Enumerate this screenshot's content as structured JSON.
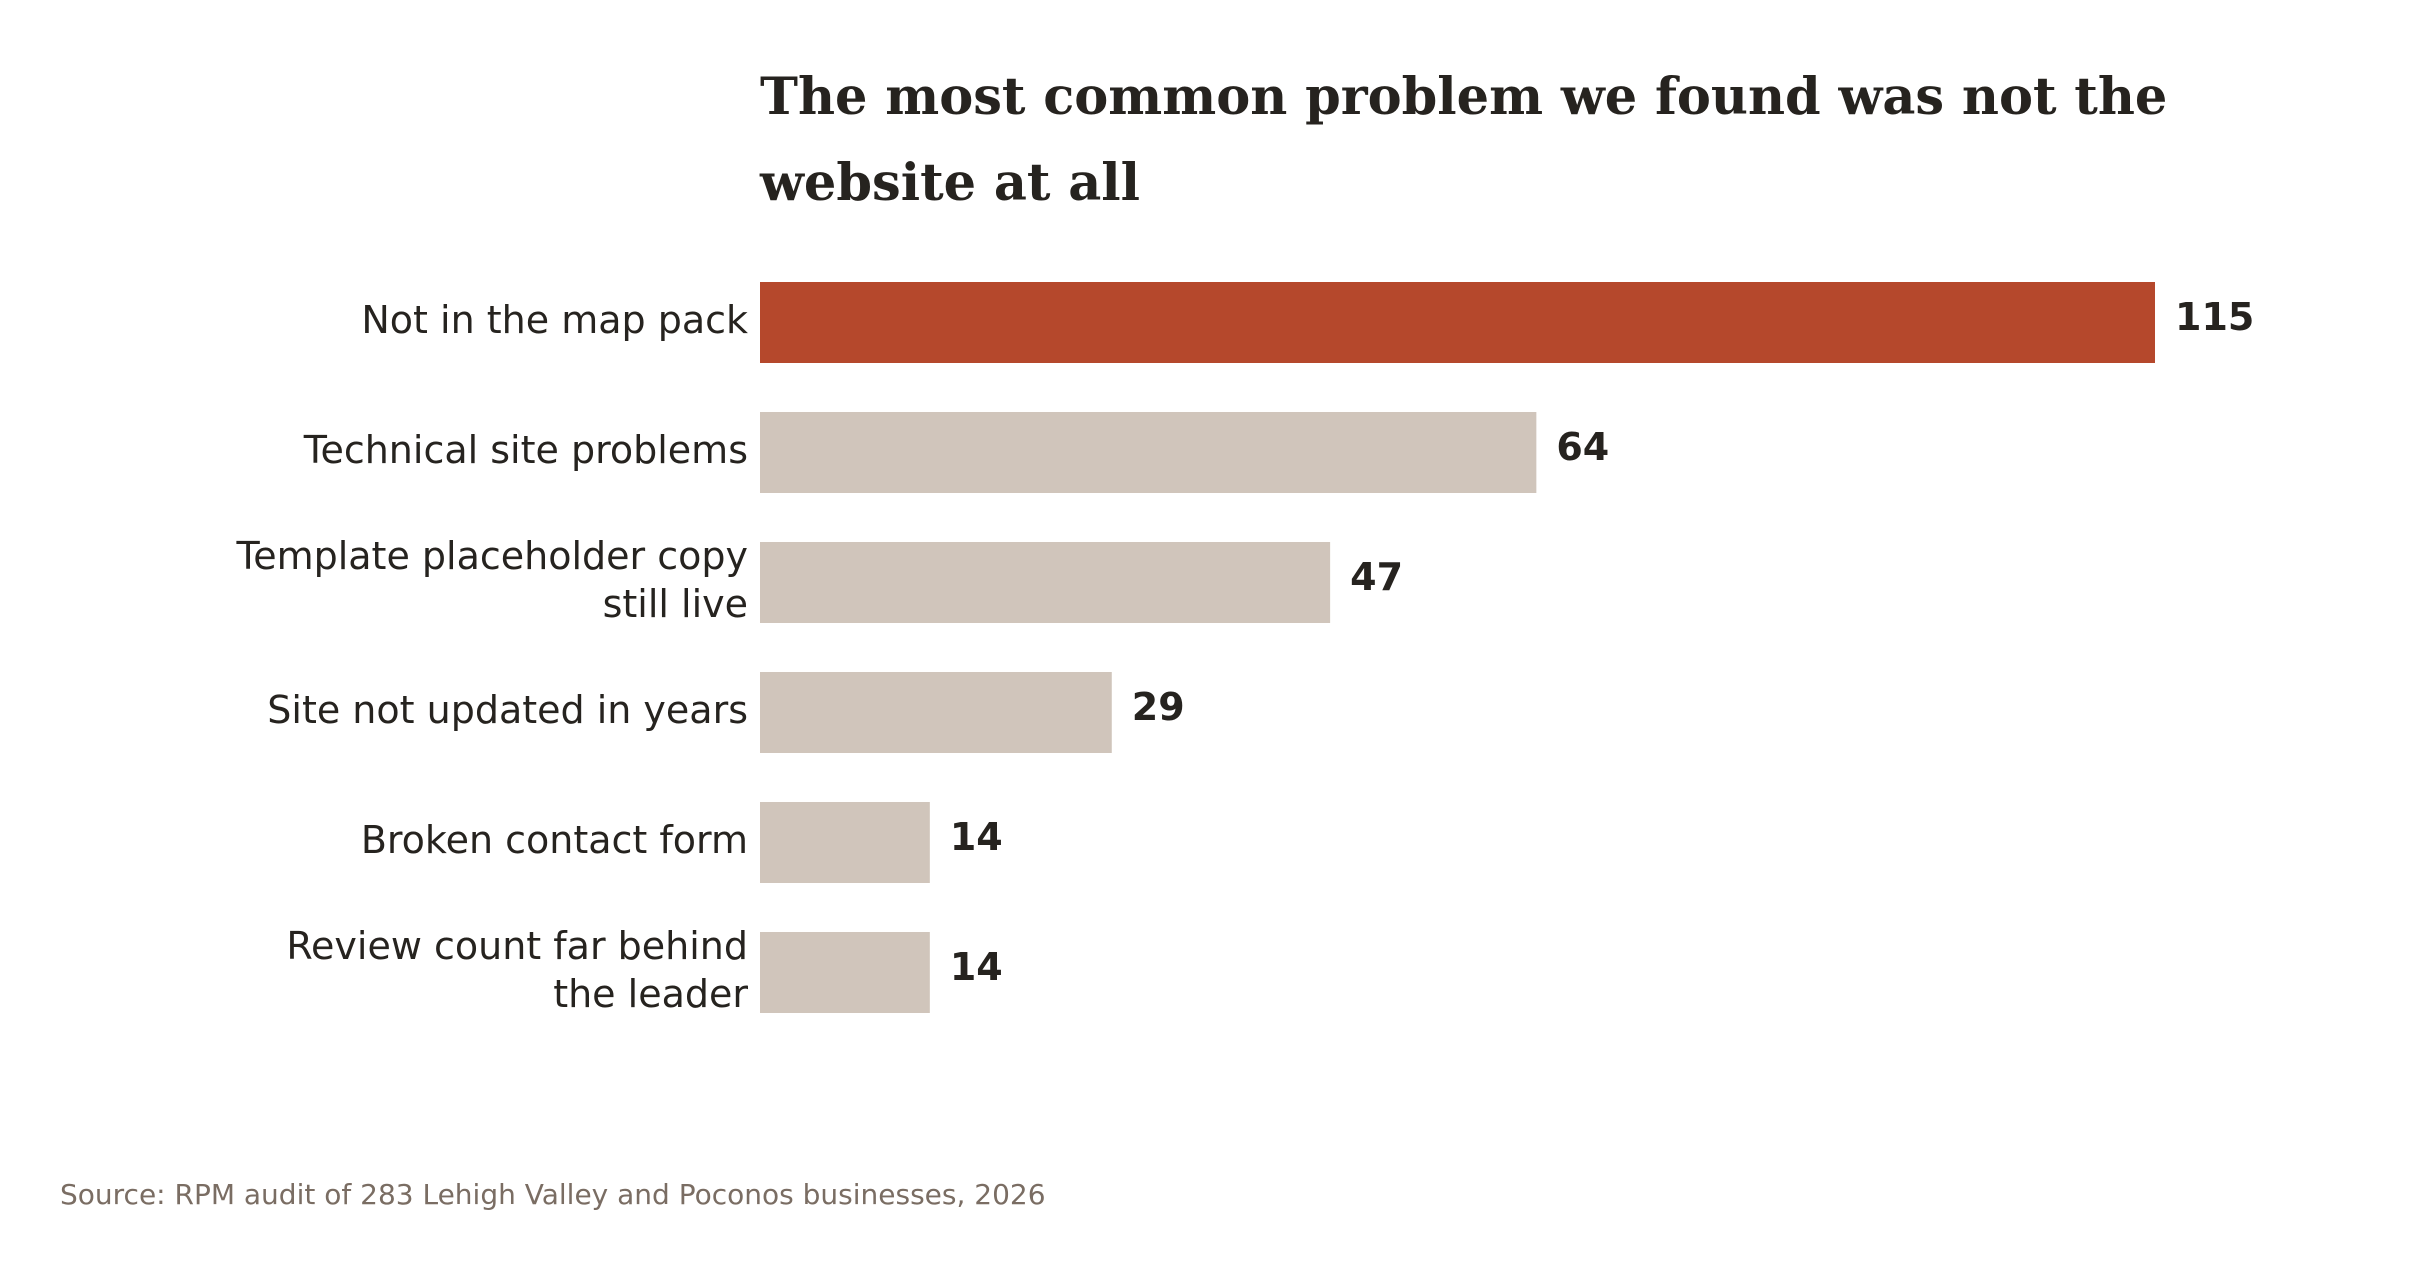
{
  "chart_data": {
    "type": "bar",
    "orientation": "horizontal",
    "title_lines": [
      "The most common problem we found was not the",
      "website at all"
    ],
    "categories": [
      "Not in the map pack",
      "Technical site problems",
      "Template placeholder copy still live",
      "Site not updated in years",
      "Broken contact form",
      "Review count far behind the leader"
    ],
    "category_label_lines": [
      [
        "Not in the map pack"
      ],
      [
        "Technical site problems"
      ],
      [
        "Template placeholder copy",
        "still live"
      ],
      [
        "Site not updated in years"
      ],
      [
        "Broken contact form"
      ],
      [
        "Review count far behind",
        "the leader"
      ]
    ],
    "values": [
      115,
      64,
      47,
      29,
      14,
      14
    ],
    "value_labels": [
      "115",
      "64",
      "47",
      "29",
      "14",
      "14"
    ],
    "highlight_index": 0,
    "xlim": [
      0,
      115
    ],
    "grid": false,
    "legend": "none",
    "colors": {
      "highlight": "#b5482c",
      "bar": "#d0c5bb",
      "text": "#26231f",
      "note": "#7a6d63",
      "background": "#ffffff"
    },
    "source": "Source: RPM audit of 283 Lehigh Valley and Poconos businesses, 2026"
  }
}
